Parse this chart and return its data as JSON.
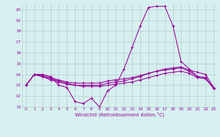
{
  "x": [
    0,
    1,
    2,
    3,
    4,
    5,
    6,
    7,
    8,
    9,
    10,
    11,
    12,
    13,
    14,
    15,
    16,
    17,
    18,
    19,
    20,
    21,
    22,
    23
  ],
  "line1": [
    13,
    14,
    14,
    13.8,
    13,
    12.8,
    11.5,
    11.3,
    11.8,
    11.0,
    12.5,
    13,
    14.5,
    16.5,
    18.5,
    20.2,
    20.3,
    20.3,
    18.5,
    15.2,
    14.5,
    13.8,
    13.7,
    12.7
  ],
  "line2": [
    13,
    14,
    13.8,
    13.5,
    13.3,
    13.1,
    13.0,
    13.0,
    13.0,
    13.0,
    13.2,
    13.3,
    13.4,
    13.6,
    13.8,
    14.1,
    14.3,
    14.4,
    14.5,
    14.6,
    14.3,
    13.8,
    13.7,
    12.7
  ],
  "line3": [
    13,
    14,
    13.9,
    13.7,
    13.5,
    13.3,
    13.2,
    13.2,
    13.2,
    13.2,
    13.4,
    13.5,
    13.6,
    13.7,
    13.9,
    14.1,
    14.3,
    14.5,
    14.6,
    14.7,
    14.4,
    14.2,
    14.0,
    12.8
  ],
  "line4": [
    13,
    14,
    13.8,
    13.6,
    13.4,
    13.2,
    13.0,
    12.9,
    12.9,
    12.9,
    13.0,
    13.1,
    13.2,
    13.3,
    13.5,
    13.7,
    13.9,
    14.1,
    14.2,
    14.3,
    14.1,
    13.7,
    13.6,
    12.7
  ],
  "color": "#990099",
  "bg_color": "#d6f0f0",
  "grid_color": "#b0c8c8",
  "xlabel": "Windchill (Refroidissement éolien,°C)",
  "ylim": [
    11,
    20.5
  ],
  "xlim": [
    -0.5,
    23.5
  ],
  "yticks": [
    11,
    12,
    13,
    14,
    15,
    16,
    17,
    18,
    19,
    20
  ],
  "xticks": [
    0,
    1,
    2,
    3,
    4,
    5,
    6,
    7,
    8,
    9,
    10,
    11,
    12,
    13,
    14,
    15,
    16,
    17,
    18,
    19,
    20,
    21,
    22,
    23
  ]
}
